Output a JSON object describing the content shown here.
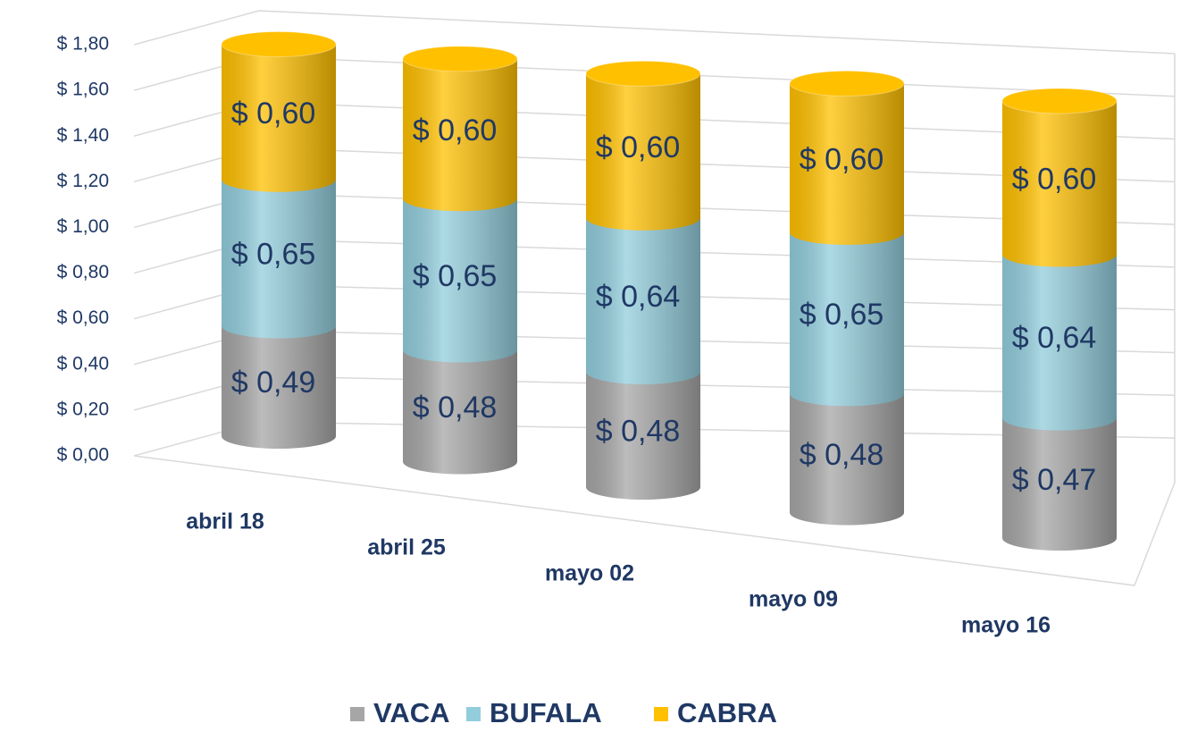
{
  "chart_data": {
    "type": "bar3d_stacked",
    "categories": [
      "abril 18",
      "abril 25",
      "mayo 02",
      "mayo 09",
      "mayo 16"
    ],
    "series": [
      {
        "name": "VACA",
        "color": "#a6a6a6",
        "values": [
          0.49,
          0.48,
          0.48,
          0.48,
          0.47
        ],
        "value_labels": [
          "$ 0,49",
          "$ 0,48",
          "$ 0,48",
          "$ 0,48",
          "$ 0,47"
        ]
      },
      {
        "name": "BUFALA",
        "color": "#92cddc",
        "values": [
          0.65,
          0.65,
          0.64,
          0.65,
          0.64
        ],
        "value_labels": [
          "$ 0,65",
          "$ 0,65",
          "$ 0,64",
          "$ 0,65",
          "$ 0,64"
        ]
      },
      {
        "name": "CABRA",
        "color": "#ffc000",
        "values": [
          0.6,
          0.6,
          0.6,
          0.6,
          0.6
        ],
        "value_labels": [
          "$ 0,60",
          "$ 0,60",
          "$ 0,60",
          "$ 0,60",
          "$ 0,60"
        ]
      }
    ],
    "ylim": [
      0,
      1.8
    ],
    "yticks": [
      {
        "value": 0,
        "label": "$ 0,00"
      },
      {
        "value": 0.2,
        "label": "$ 0,20"
      },
      {
        "value": 0.4,
        "label": "$ 0,40"
      },
      {
        "value": 0.6,
        "label": "$ 0,60"
      },
      {
        "value": 0.8,
        "label": "$ 0,80"
      },
      {
        "value": 1.0,
        "label": "$ 1,00"
      },
      {
        "value": 1.2,
        "label": "$ 1,20"
      },
      {
        "value": 1.4,
        "label": "$ 1,40"
      },
      {
        "value": 1.6,
        "label": "$ 1,60"
      },
      {
        "value": 1.8,
        "label": "$ 1,80"
      }
    ],
    "grid": true,
    "legend": "bottom"
  }
}
